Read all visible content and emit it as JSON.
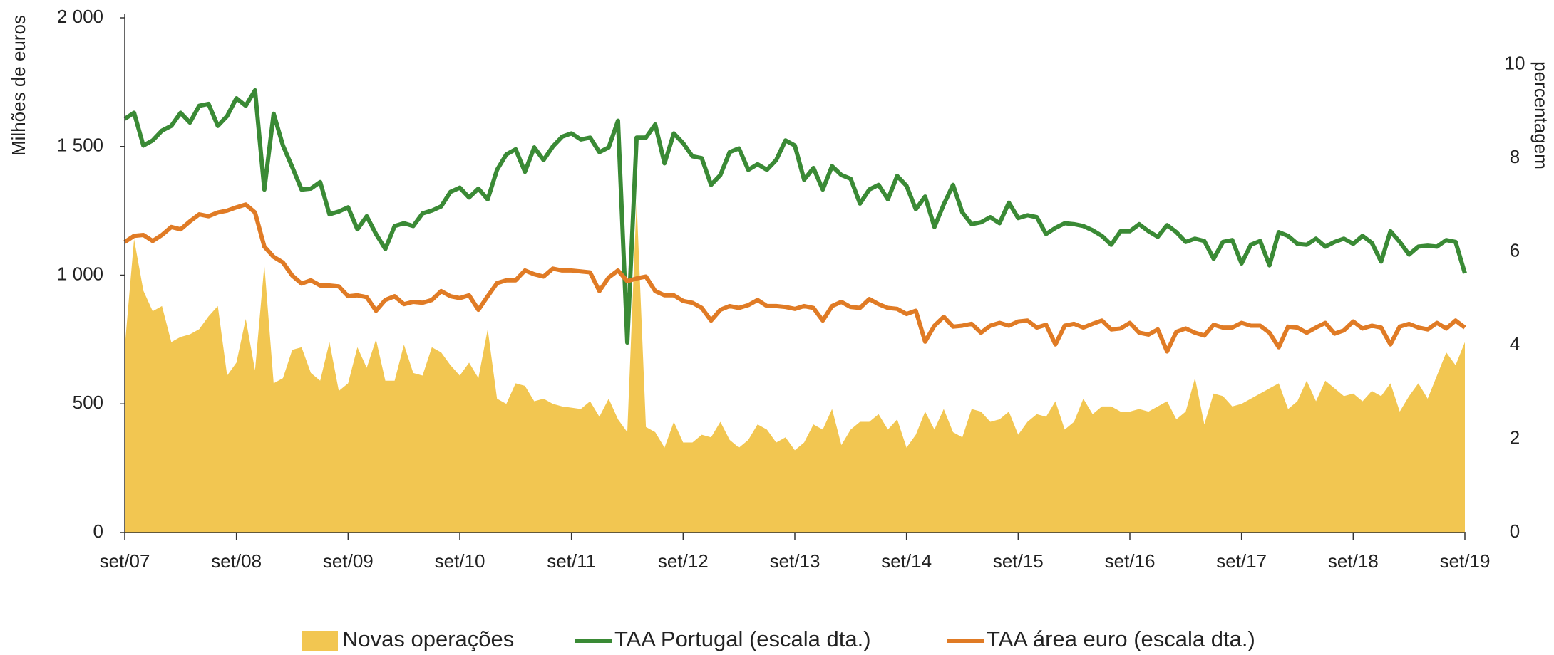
{
  "chart_data": {
    "type": "area-line",
    "y_label": "Milhões de euros",
    "y2_label": "percentagem",
    "categories": [
      "set/07",
      null,
      null,
      null,
      null,
      null,
      null,
      null,
      null,
      null,
      null,
      null,
      "set/08",
      null,
      null,
      null,
      null,
      null,
      null,
      null,
      null,
      null,
      null,
      null,
      "set/09",
      null,
      null,
      null,
      null,
      null,
      null,
      null,
      null,
      null,
      null,
      null,
      "set/10",
      null,
      null,
      null,
      null,
      null,
      null,
      null,
      null,
      null,
      null,
      null,
      "set/11",
      null,
      null,
      null,
      null,
      null,
      null,
      null,
      null,
      null,
      null,
      null,
      "set/12",
      null,
      null,
      null,
      null,
      null,
      null,
      null,
      null,
      null,
      null,
      null,
      "set/13",
      null,
      null,
      null,
      null,
      null,
      null,
      null,
      null,
      null,
      null,
      null,
      "set/14",
      null,
      null,
      null,
      null,
      null,
      null,
      null,
      null,
      null,
      null,
      null,
      "set/15",
      null,
      null,
      null,
      null,
      null,
      null,
      null,
      null,
      null,
      null,
      null,
      "set/16",
      null,
      null,
      null,
      null,
      null,
      null,
      null,
      null,
      null,
      null,
      null,
      "set/17",
      null,
      null,
      null,
      null,
      null,
      null,
      null,
      null,
      null,
      null,
      null,
      "set/18",
      null,
      null,
      null,
      null,
      null,
      null,
      null,
      null,
      null,
      null,
      null,
      "set/19"
    ],
    "series": [
      {
        "name": "Novas operações",
        "kind": "area",
        "color": "#f2c651",
        "values": [
          720,
          1140,
          940,
          860,
          880,
          740,
          760,
          770,
          790,
          840,
          880,
          610,
          660,
          830,
          630,
          1040,
          580,
          600,
          710,
          720,
          620,
          590,
          740,
          550,
          580,
          720,
          640,
          750,
          590,
          590,
          730,
          620,
          610,
          720,
          700,
          650,
          610,
          660,
          600,
          790,
          520,
          500,
          580,
          570,
          510,
          520,
          500,
          490,
          485,
          480,
          510,
          450,
          520,
          440,
          390,
          1290,
          410,
          390,
          330,
          430,
          350,
          350,
          380,
          370,
          430,
          360,
          330,
          360,
          420,
          400,
          350,
          370,
          320,
          350,
          420,
          400,
          480,
          340,
          400,
          430,
          430,
          460,
          400,
          440,
          330,
          380,
          470,
          400,
          480,
          390,
          370,
          480,
          470,
          430,
          440,
          470,
          380,
          430,
          460,
          450,
          510,
          400,
          430,
          520,
          460,
          490,
          490,
          470,
          470,
          480,
          470,
          490,
          510,
          440,
          470,
          600,
          420,
          540,
          530,
          490,
          500,
          520,
          540,
          560,
          580,
          480,
          510,
          590,
          510,
          590,
          560,
          530,
          540,
          510,
          550,
          530,
          580,
          470,
          530,
          580,
          520,
          610,
          700,
          650,
          740
        ]
      },
      {
        "name": "TAA Portugal (escala dta.)",
        "kind": "line",
        "axis": "y2",
        "color": "#3a8a35",
        "values": [
          8.84,
          8.97,
          8.27,
          8.38,
          8.59,
          8.69,
          8.97,
          8.76,
          9.12,
          9.16,
          8.69,
          8.9,
          9.28,
          9.12,
          9.45,
          7.33,
          8.95,
          8.27,
          7.81,
          7.33,
          7.35,
          7.49,
          6.8,
          6.86,
          6.95,
          6.48,
          6.76,
          6.38,
          6.06,
          6.55,
          6.61,
          6.55,
          6.82,
          6.88,
          6.97,
          7.28,
          7.37,
          7.16,
          7.35,
          7.12,
          7.75,
          8.08,
          8.19,
          7.71,
          8.23,
          7.96,
          8.25,
          8.46,
          8.53,
          8.4,
          8.44,
          8.13,
          8.23,
          8.8,
          4.06,
          8.44,
          8.44,
          8.72,
          7.89,
          8.53,
          8.32,
          8.04,
          8.0,
          7.43,
          7.64,
          8.13,
          8.21,
          7.75,
          7.87,
          7.75,
          7.96,
          8.38,
          8.27,
          7.54,
          7.79,
          7.33,
          7.83,
          7.64,
          7.56,
          7.03,
          7.33,
          7.43,
          7.12,
          7.62,
          7.41,
          6.91,
          7.18,
          6.53,
          7.01,
          7.43,
          6.84,
          6.59,
          6.63,
          6.74,
          6.61,
          7.05,
          6.72,
          6.78,
          6.74,
          6.38,
          6.51,
          6.61,
          6.59,
          6.55,
          6.46,
          6.34,
          6.15,
          6.44,
          6.44,
          6.59,
          6.44,
          6.32,
          6.57,
          6.42,
          6.21,
          6.28,
          6.23,
          5.85,
          6.21,
          6.25,
          5.75,
          6.15,
          6.23,
          5.71,
          6.42,
          6.34,
          6.17,
          6.15,
          6.28,
          6.11,
          6.21,
          6.28,
          6.17,
          6.34,
          6.19,
          5.79,
          6.44,
          6.21,
          5.94,
          6.11,
          6.13,
          6.11,
          6.25,
          6.21,
          5.54
        ]
      },
      {
        "name": "TAA área euro (escala dta.)",
        "kind": "line",
        "axis": "y2",
        "color": "#e07b25",
        "values": [
          6.21,
          6.34,
          6.36,
          6.23,
          6.36,
          6.53,
          6.48,
          6.65,
          6.8,
          6.76,
          6.84,
          6.88,
          6.95,
          7.01,
          6.84,
          6.11,
          5.89,
          5.77,
          5.49,
          5.32,
          5.39,
          5.28,
          5.28,
          5.26,
          5.05,
          5.07,
          5.03,
          4.74,
          4.97,
          5.05,
          4.88,
          4.93,
          4.91,
          4.97,
          5.16,
          5.05,
          5.01,
          5.07,
          4.76,
          5.05,
          5.33,
          5.39,
          5.39,
          5.6,
          5.52,
          5.47,
          5.64,
          5.6,
          5.6,
          5.58,
          5.56,
          5.16,
          5.45,
          5.6,
          5.37,
          5.43,
          5.47,
          5.16,
          5.07,
          5.07,
          4.95,
          4.91,
          4.8,
          4.53,
          4.76,
          4.84,
          4.8,
          4.86,
          4.97,
          4.84,
          4.84,
          4.82,
          4.78,
          4.84,
          4.8,
          4.53,
          4.84,
          4.93,
          4.82,
          4.8,
          4.99,
          4.88,
          4.8,
          4.78,
          4.67,
          4.74,
          4.08,
          4.42,
          4.61,
          4.4,
          4.42,
          4.46,
          4.27,
          4.42,
          4.48,
          4.42,
          4.51,
          4.53,
          4.38,
          4.44,
          4.02,
          4.42,
          4.46,
          4.38,
          4.46,
          4.53,
          4.34,
          4.36,
          4.48,
          4.27,
          4.23,
          4.34,
          3.87,
          4.29,
          4.36,
          4.27,
          4.21,
          4.44,
          4.38,
          4.38,
          4.48,
          4.42,
          4.42,
          4.27,
          3.96,
          4.4,
          4.38,
          4.27,
          4.38,
          4.48,
          4.25,
          4.32,
          4.51,
          4.36,
          4.42,
          4.38,
          4.02,
          4.4,
          4.46,
          4.38,
          4.34,
          4.48,
          4.36,
          4.53,
          4.38
        ]
      }
    ],
    "ylim": [
      0,
      2000
    ],
    "yticks": [
      0,
      500,
      {
        "value": 1000,
        "label": "1 000"
      },
      {
        "value": 1500,
        "label": "1 500"
      },
      {
        "value": 2000,
        "label": "2 000"
      }
    ],
    "y2lim": [
      0,
      11
    ],
    "y2ticks": [
      0,
      2,
      4,
      6,
      8,
      10
    ],
    "legend": "bottom"
  }
}
